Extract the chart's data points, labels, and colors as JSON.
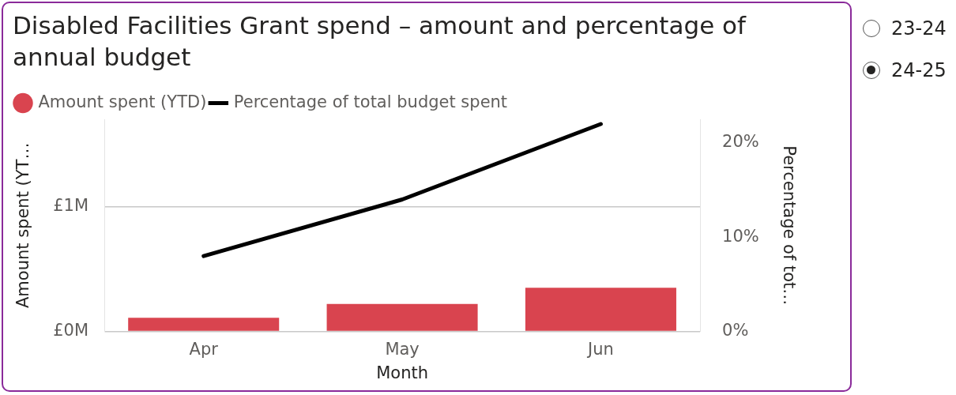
{
  "chart_data": {
    "type": "bar",
    "title": "Disabled Facilities Grant spend – amount and percentage of annual budget",
    "xlabel": "Month",
    "ylabel": "Amount spent (YT…",
    "y2label": "Percentage of tot…",
    "categories": [
      "Apr",
      "May",
      "Jun"
    ],
    "series": [
      {
        "name": "Amount spent (YTD)",
        "color": "#d9444f",
        "values": [
          0.11,
          0.22,
          0.35
        ]
      },
      {
        "name": "Percentage of total budget spent",
        "type": "line",
        "color": "#000000",
        "axis": "y2",
        "values": [
          8,
          14,
          22
        ]
      }
    ],
    "ylim": [
      0,
      1.7
    ],
    "yticks": [
      {
        "value": 0,
        "label": "£0M"
      },
      {
        "value": 1,
        "label": "£1M"
      }
    ],
    "y2lim": [
      0,
      22.5
    ],
    "y2ticks": [
      {
        "value": 0,
        "label": "0%"
      },
      {
        "value": 10,
        "label": "10%"
      },
      {
        "value": 20,
        "label": "20%"
      }
    ],
    "grid": "y",
    "legend": "top left",
    "marker": "none",
    "annotations": [
      "23-24",
      "24-25"
    ]
  }
}
